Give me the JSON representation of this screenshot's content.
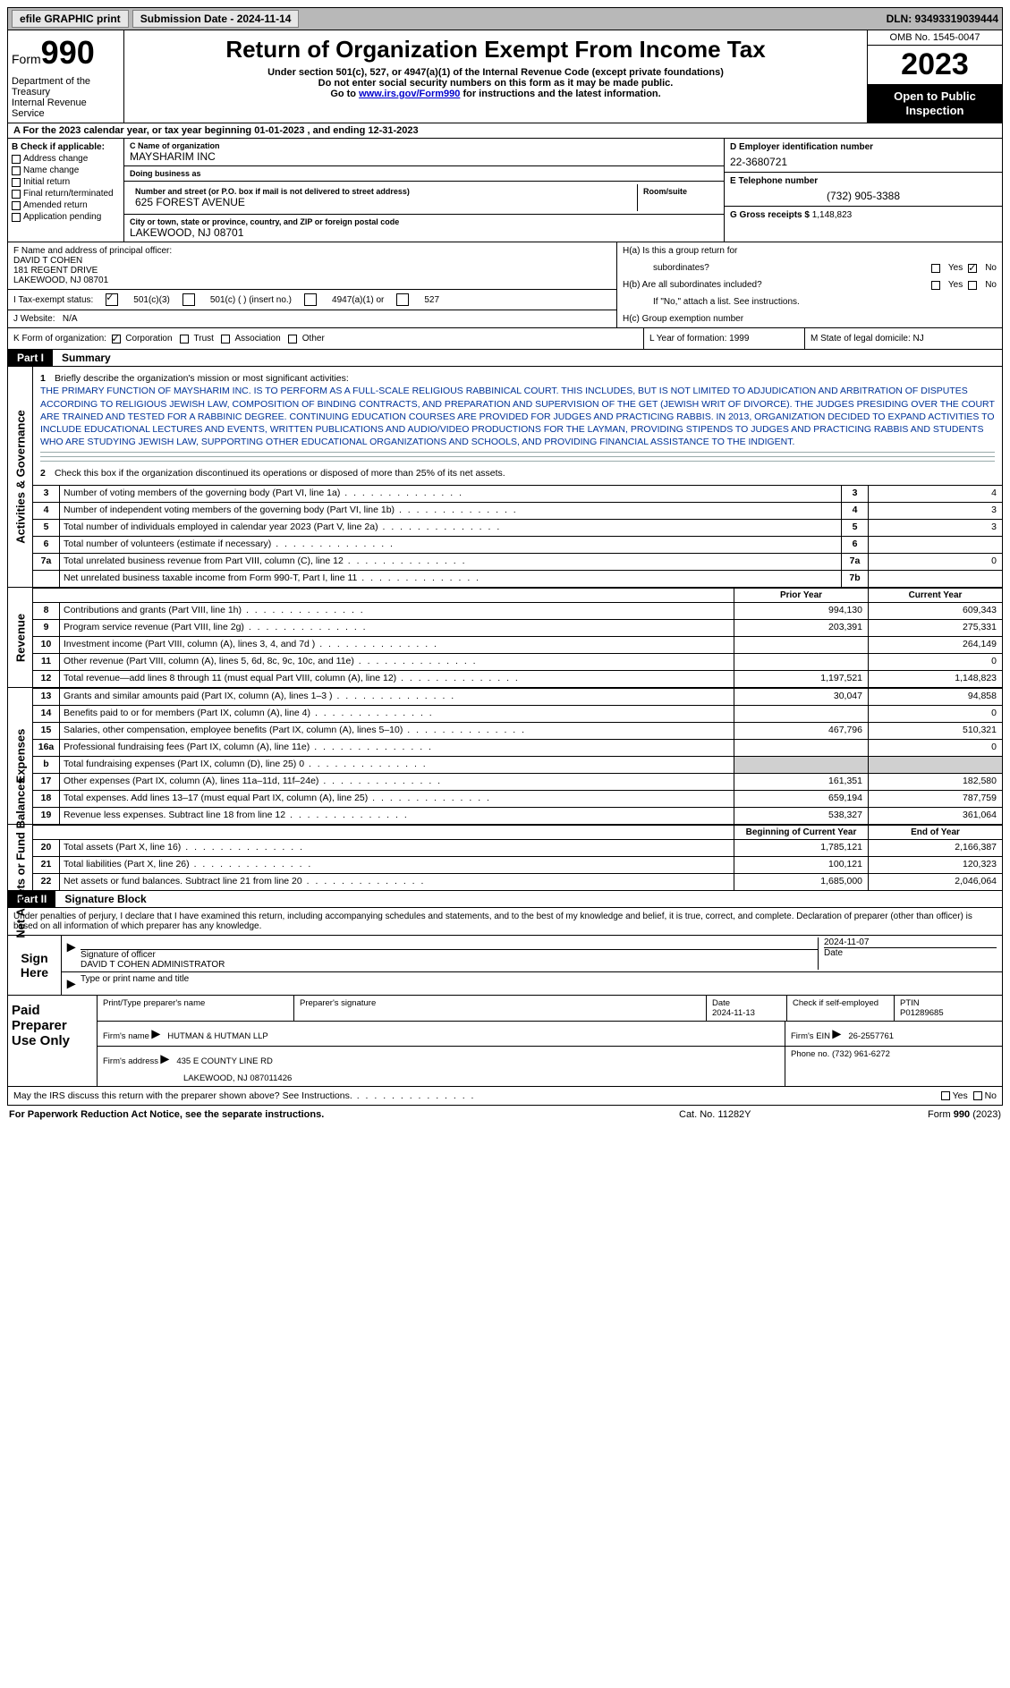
{
  "top": {
    "efile": "efile GRAPHIC print",
    "submission": "Submission Date - 2024-11-14",
    "dln": "DLN: 93493319039444"
  },
  "header": {
    "form_word": "Form",
    "form_num": "990",
    "dept1": "Department of the Treasury",
    "dept2": "Internal Revenue Service",
    "title": "Return of Organization Exempt From Income Tax",
    "sub1": "Under section 501(c), 527, or 4947(a)(1) of the Internal Revenue Code (except private foundations)",
    "sub2": "Do not enter social security numbers on this form as it may be made public.",
    "sub3a": "Go to ",
    "sub3link": "www.irs.gov/Form990",
    "sub3b": " for instructions and the latest information.",
    "omb": "OMB No. 1545-0047",
    "year": "2023",
    "inspect": "Open to Public Inspection"
  },
  "period": "A For the 2023 calendar year, or tax year beginning 01-01-2023    , and ending 12-31-2023",
  "B": {
    "header": "B Check if applicable:",
    "opts": [
      "Address change",
      "Name change",
      "Initial return",
      "Final return/terminated",
      "Amended return",
      "Application pending"
    ]
  },
  "C": {
    "name_lbl": "C Name of organization",
    "name": "MAYSHARIM INC",
    "dba_lbl": "Doing business as",
    "dba": "",
    "street_lbl": "Number and street (or P.O. box if mail is not delivered to street address)",
    "street": "625 FOREST AVENUE",
    "room_lbl": "Room/suite",
    "city_lbl": "City or town, state or province, country, and ZIP or foreign postal code",
    "city": "LAKEWOOD, NJ  08701"
  },
  "D": {
    "lbl": "D Employer identification number",
    "val": "22-3680721"
  },
  "E": {
    "lbl": "E Telephone number",
    "val": "(732) 905-3388"
  },
  "G": {
    "lbl": "G Gross receipts $",
    "val": "1,148,823"
  },
  "F": {
    "lbl": "F  Name and address of principal officer:",
    "name": "DAVID T COHEN",
    "addr1": "181 REGENT DRIVE",
    "addr2": "LAKEWOOD, NJ  08701"
  },
  "I": {
    "lbl": "I   Tax-exempt status:",
    "o1": "501(c)(3)",
    "o2": "501(c) (   ) (insert no.)",
    "o3": "4947(a)(1) or",
    "o4": "527"
  },
  "J": {
    "lbl": "J   Website:",
    "val": "N/A"
  },
  "H": {
    "a_lbl": "H(a)  Is this a group return for",
    "a_sub": "subordinates?",
    "b_lbl": "H(b)  Are all subordinates included?",
    "b_note": "If \"No,\" attach a list. See instructions.",
    "c_lbl": "H(c)  Group exemption number",
    "yes": "Yes",
    "no": "No"
  },
  "K": {
    "lbl": "K Form of organization:",
    "opts": [
      "Corporation",
      "Trust",
      "Association",
      "Other"
    ]
  },
  "L": {
    "lbl": "L Year of formation:",
    "val": "1999"
  },
  "M": {
    "lbl": "M State of legal domicile:",
    "val": "NJ"
  },
  "part1": {
    "num": "Part I",
    "ttl": "Summary"
  },
  "summary": {
    "q1": "Briefly describe the organization's mission or most significant activities:",
    "mission": "THE PRIMARY FUNCTION OF MAYSHARIM INC. IS TO PERFORM AS A FULL-SCALE RELIGIOUS RABBINICAL COURT. THIS INCLUDES, BUT IS NOT LIMITED TO ADJUDICATION AND ARBITRATION OF DISPUTES ACCORDING TO RELIGIOUS JEWISH LAW, COMPOSITION OF BINDING CONTRACTS, AND PREPARATION AND SUPERVISION OF THE GET (JEWISH WRIT OF DIVORCE). THE JUDGES PRESIDING OVER THE COURT ARE TRAINED AND TESTED FOR A RABBINIC DEGREE. CONTINUING EDUCATION COURSES ARE PROVIDED FOR JUDGES AND PRACTICING RABBIS. IN 2013, ORGANIZATION DECIDED TO EXPAND ACTIVITIES TO INCLUDE EDUCATIONAL LECTURES AND EVENTS, WRITTEN PUBLICATIONS AND AUDIO/VIDEO PRODUCTIONS FOR THE LAYMAN, PROVIDING STIPENDS TO JUDGES AND PRACTICING RABBIS AND STUDENTS WHO ARE STUDYING JEWISH LAW, SUPPORTING OTHER EDUCATIONAL ORGANIZATIONS AND SCHOOLS, AND PROVIDING FINANCIAL ASSISTANCE TO THE INDIGENT.",
    "q2": "Check this box        if the organization discontinued its operations or disposed of more than 25% of its net assets.",
    "lines": [
      {
        "n": "3",
        "t": "Number of voting members of the governing body (Part VI, line 1a)",
        "box": "3",
        "v": "4"
      },
      {
        "n": "4",
        "t": "Number of independent voting members of the governing body (Part VI, line 1b)",
        "box": "4",
        "v": "3"
      },
      {
        "n": "5",
        "t": "Total number of individuals employed in calendar year 2023 (Part V, line 2a)",
        "box": "5",
        "v": "3"
      },
      {
        "n": "6",
        "t": "Total number of volunteers (estimate if necessary)",
        "box": "6",
        "v": ""
      },
      {
        "n": "7a",
        "t": "Total unrelated business revenue from Part VIII, column (C), line 12",
        "box": "7a",
        "v": "0"
      },
      {
        "n": "",
        "t": "Net unrelated business taxable income from Form 990-T, Part I, line 11",
        "box": "7b",
        "v": ""
      }
    ]
  },
  "cols": {
    "prior": "Prior Year",
    "current": "Current Year",
    "boy": "Beginning of Current Year",
    "eoy": "End of Year"
  },
  "revenue": [
    {
      "n": "8",
      "t": "Contributions and grants (Part VIII, line 1h)",
      "p": "994,130",
      "c": "609,343"
    },
    {
      "n": "9",
      "t": "Program service revenue (Part VIII, line 2g)",
      "p": "203,391",
      "c": "275,331"
    },
    {
      "n": "10",
      "t": "Investment income (Part VIII, column (A), lines 3, 4, and 7d )",
      "p": "",
      "c": "264,149"
    },
    {
      "n": "11",
      "t": "Other revenue (Part VIII, column (A), lines 5, 6d, 8c, 9c, 10c, and 11e)",
      "p": "",
      "c": "0"
    },
    {
      "n": "12",
      "t": "Total revenue—add lines 8 through 11 (must equal Part VIII, column (A), line 12)",
      "p": "1,197,521",
      "c": "1,148,823"
    }
  ],
  "expenses": [
    {
      "n": "13",
      "t": "Grants and similar amounts paid (Part IX, column (A), lines 1–3 )",
      "p": "30,047",
      "c": "94,858"
    },
    {
      "n": "14",
      "t": "Benefits paid to or for members (Part IX, column (A), line 4)",
      "p": "",
      "c": "0"
    },
    {
      "n": "15",
      "t": "Salaries, other compensation, employee benefits (Part IX, column (A), lines 5–10)",
      "p": "467,796",
      "c": "510,321"
    },
    {
      "n": "16a",
      "t": "Professional fundraising fees (Part IX, column (A), line 11e)",
      "p": "",
      "c": "0"
    },
    {
      "n": "b",
      "t": "Total fundraising expenses (Part IX, column (D), line 25) 0",
      "p": "GREY",
      "c": "GREY"
    },
    {
      "n": "17",
      "t": "Other expenses (Part IX, column (A), lines 11a–11d, 11f–24e)",
      "p": "161,351",
      "c": "182,580"
    },
    {
      "n": "18",
      "t": "Total expenses. Add lines 13–17 (must equal Part IX, column (A), line 25)",
      "p": "659,194",
      "c": "787,759"
    },
    {
      "n": "19",
      "t": "Revenue less expenses. Subtract line 18 from line 12",
      "p": "538,327",
      "c": "361,064"
    }
  ],
  "netassets": [
    {
      "n": "20",
      "t": "Total assets (Part X, line 16)",
      "p": "1,785,121",
      "c": "2,166,387"
    },
    {
      "n": "21",
      "t": "Total liabilities (Part X, line 26)",
      "p": "100,121",
      "c": "120,323"
    },
    {
      "n": "22",
      "t": "Net assets or fund balances. Subtract line 21 from line 20",
      "p": "1,685,000",
      "c": "2,046,064"
    }
  ],
  "sections": {
    "activities": "Activities & Governance",
    "revenue": "Revenue",
    "expenses": "Expenses",
    "netassets": "Net Assets or Fund Balances"
  },
  "part2": {
    "num": "Part II",
    "ttl": "Signature Block"
  },
  "penalties": "Under penalties of perjury, I declare that I have examined this return, including accompanying schedules and statements, and to the best of my knowledge and belief, it is true, correct, and complete. Declaration of preparer (other than officer) is based on all information of which preparer has any knowledge.",
  "sign": {
    "side": "Sign Here",
    "sig_lbl": "Signature of officer",
    "date_lbl": "Date",
    "date": "2024-11-07",
    "name": "DAVID T COHEN ADMINISTRATOR",
    "name_lbl": "Type or print name and title"
  },
  "prep": {
    "side": "Paid Preparer Use Only",
    "h1": "Print/Type preparer's name",
    "h2": "Preparer's signature",
    "h3": "Date",
    "h3v": "2024-11-13",
    "h4": "Check        if self-employed",
    "h5": "PTIN",
    "h5v": "P01289685",
    "firm_lbl": "Firm's name",
    "firm": "HUTMAN & HUTMAN LLP",
    "ein_lbl": "Firm's EIN",
    "ein": "26-2557761",
    "addr_lbl": "Firm's address",
    "addr": "435 E COUNTY LINE RD",
    "addr2": "LAKEWOOD, NJ  087011426",
    "phone_lbl": "Phone no.",
    "phone": "(732) 961-6272"
  },
  "discuss": "May the IRS discuss this return with the preparer shown above? See Instructions.",
  "footer": {
    "l": "For Paperwork Reduction Act Notice, see the separate instructions.",
    "m": "Cat. No. 11282Y",
    "r": "Form 990 (2023)"
  }
}
